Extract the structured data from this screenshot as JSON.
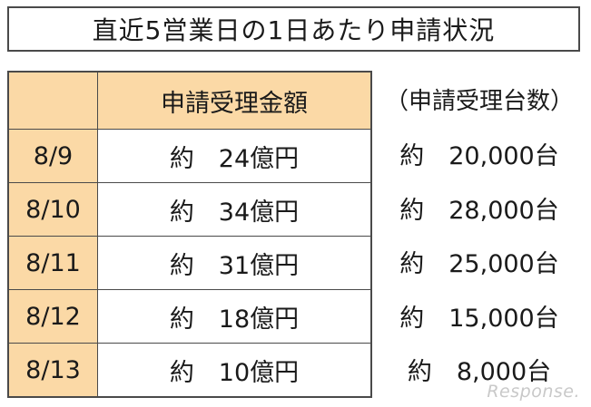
{
  "title": "直近5営業日の1日あたり申請状況",
  "header": {
    "amount": "申請受理金額",
    "count": "（申請受理台数）"
  },
  "rows": [
    {
      "date": "8/9",
      "amount": "約　24億円",
      "count": "約　20,000台"
    },
    {
      "date": "8/10",
      "amount": "約　34億円",
      "count": "約　28,000台"
    },
    {
      "date": "8/11",
      "amount": "約　31億円",
      "count": "約　25,000台"
    },
    {
      "date": "8/12",
      "amount": "約　18億円",
      "count": "約　15,000台"
    },
    {
      "date": "8/13",
      "amount": "約　10億円",
      "count": "約　8,000台"
    }
  ],
  "watermark": "Response."
}
